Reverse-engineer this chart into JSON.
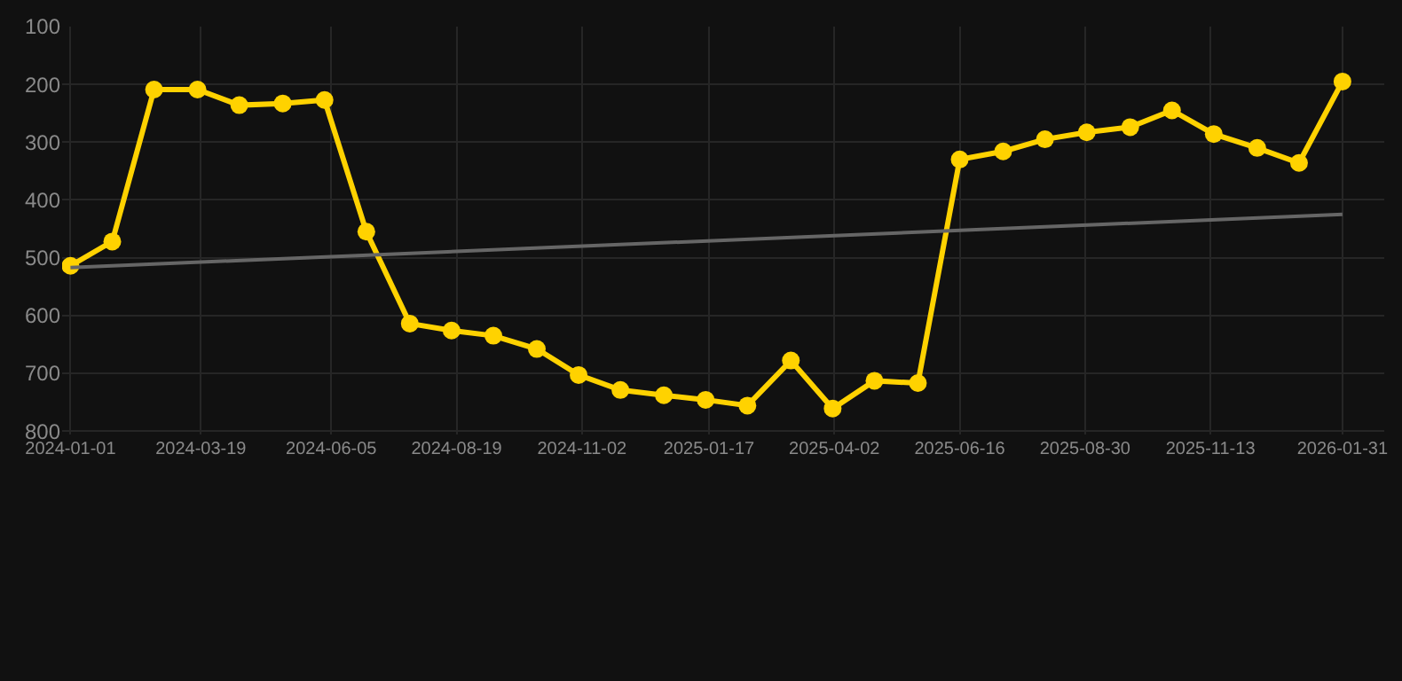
{
  "chart_data": {
    "type": "line",
    "x": [
      "2024-01-01",
      "2024-01-26",
      "2024-02-20",
      "2024-03-17",
      "2024-04-11",
      "2024-05-07",
      "2024-06-01",
      "2024-06-26",
      "2024-07-22",
      "2024-08-16",
      "2024-09-10",
      "2024-10-06",
      "2024-10-31",
      "2024-11-25",
      "2024-12-21",
      "2025-01-15",
      "2025-02-09",
      "2025-03-07",
      "2025-04-01",
      "2025-04-26",
      "2025-05-22",
      "2025-06-16",
      "2025-07-12",
      "2025-08-06",
      "2025-08-31",
      "2025-09-26",
      "2025-10-21",
      "2025-11-15",
      "2025-12-11",
      "2026-01-05",
      "2026-01-31"
    ],
    "series": [
      {
        "color": "#ffd200",
        "marker": "circle",
        "values": [
          514,
          472,
          209,
          209,
          236,
          233,
          227,
          455,
          614,
          626,
          635,
          658,
          703,
          729,
          738,
          746,
          756,
          678,
          761,
          713,
          717,
          330,
          316,
          295,
          283,
          274,
          245,
          286,
          310,
          336,
          195
        ]
      },
      {
        "type": "line",
        "color": "#666666",
        "marker": "none",
        "x": [
          "2024-01-01",
          "2026-01-31"
        ],
        "values": [
          517,
          425
        ]
      }
    ],
    "xlim": [
      "2023-12-27",
      "2026-02-25"
    ],
    "xticks": [
      "2024-01-01",
      "2024-03-19",
      "2024-06-05",
      "2024-08-19",
      "2024-11-02",
      "2025-01-17",
      "2025-04-02",
      "2025-06-16",
      "2025-08-30",
      "2025-11-13",
      "2026-01-31"
    ],
    "ylim": [
      806,
      100
    ],
    "yticks": [
      100,
      200,
      300,
      400,
      500,
      600,
      700,
      800
    ],
    "grid": true
  }
}
